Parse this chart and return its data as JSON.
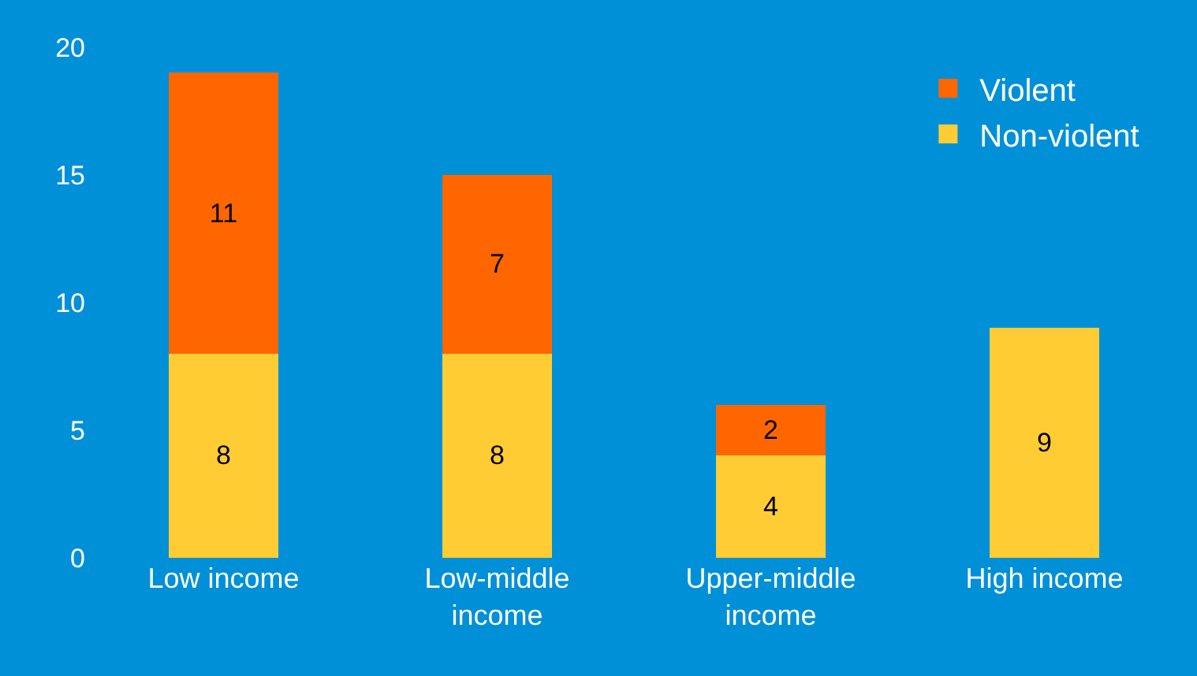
{
  "chart_data": {
    "type": "bar",
    "stacked": true,
    "categories": [
      "Low income",
      "Low-middle income",
      "Upper-middle income",
      "High income"
    ],
    "series": [
      {
        "name": "Non-violent",
        "color": "#ffcc33",
        "values": [
          8,
          8,
          4,
          9
        ]
      },
      {
        "name": "Violent",
        "color": "#ff6600",
        "values": [
          11,
          7,
          2,
          null
        ]
      }
    ],
    "ylim": [
      0,
      20
    ],
    "yticks": [
      0,
      5,
      10,
      15,
      20
    ],
    "grid": false,
    "legend": "top right",
    "data_labels": true
  }
}
